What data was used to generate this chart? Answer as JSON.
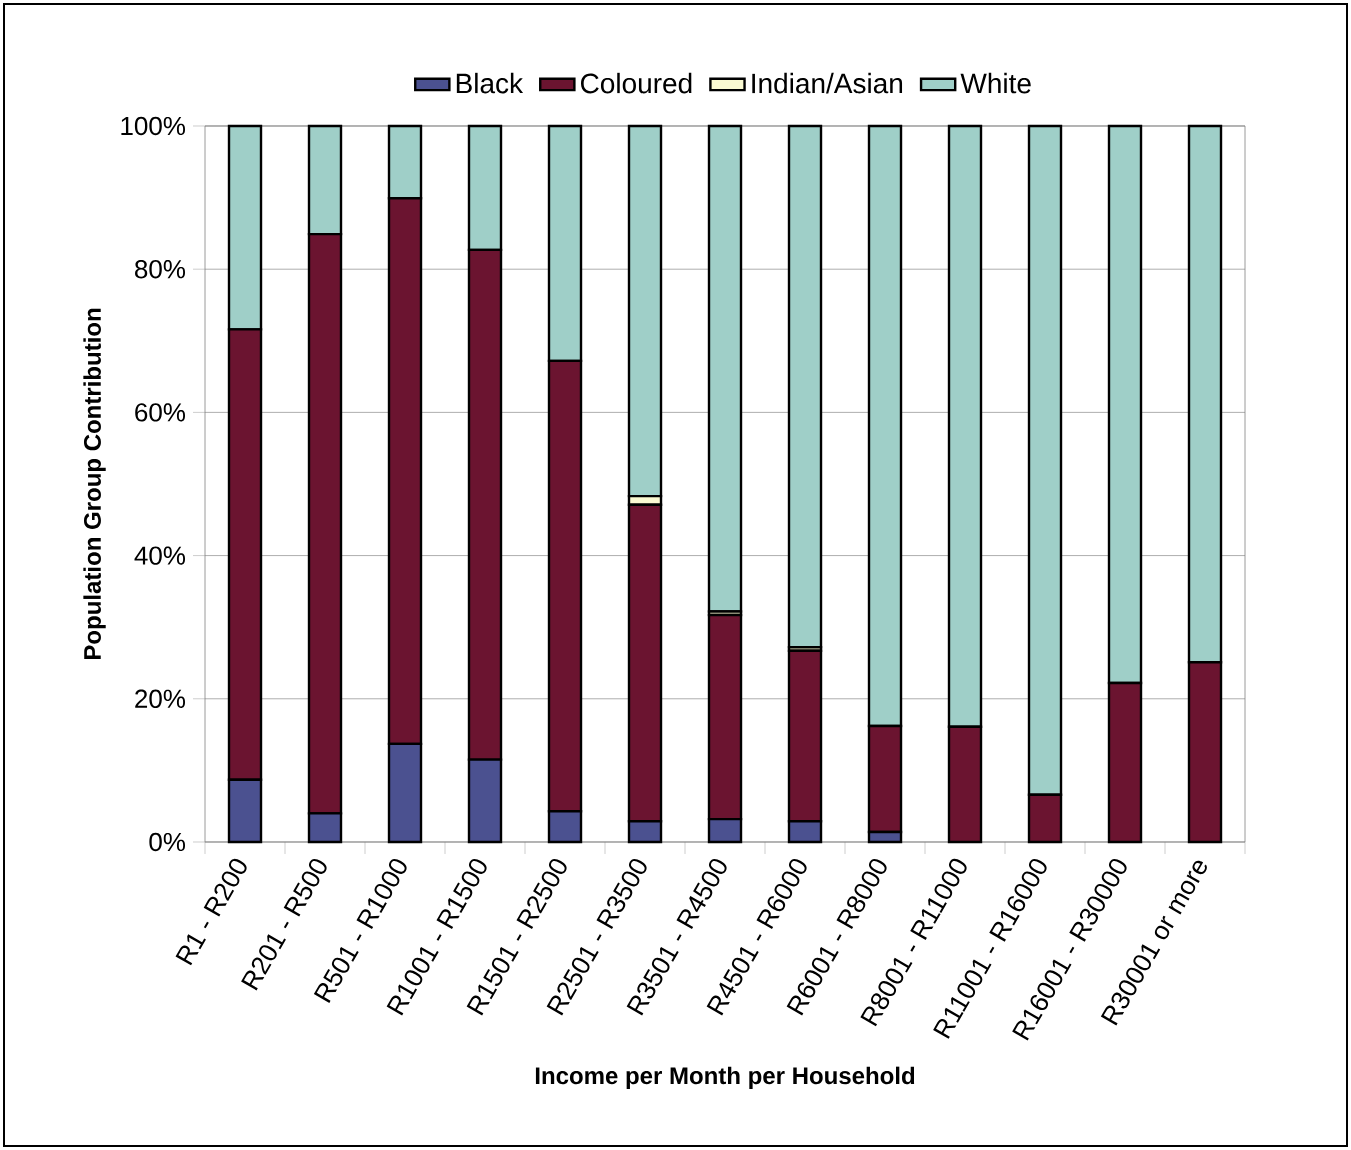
{
  "chart_data": {
    "type": "bar",
    "stacked": true,
    "xlabel": "Income per Month per Household",
    "ylabel": "Population Group Contribution",
    "categories": [
      "R1 - R200",
      "R201 - R500",
      "R501 - R1000",
      "R1001 - R1500",
      "R1501 - R2500",
      "R2501 - R3500",
      "R3501 - R4500",
      "R4501 - R6000",
      "R6001 - R8000",
      "R8001 - R11000",
      "R11001 - R16000",
      "R16001 - R30000",
      "R30001 or more"
    ],
    "series": [
      {
        "name": "Black",
        "color": "#4b5190",
        "values": [
          8.7,
          4.0,
          13.7,
          11.5,
          4.3,
          2.9,
          3.2,
          2.9,
          1.4,
          0,
          0,
          0,
          0
        ]
      },
      {
        "name": "Coloured",
        "color": "#6b1430",
        "values": [
          62.9,
          80.9,
          76.2,
          71.2,
          62.9,
          44.2,
          28.5,
          23.8,
          14.8,
          16.1,
          6.6,
          22.2,
          25.1
        ]
      },
      {
        "name": "Indian/Asian",
        "color": "#fafad2",
        "values": [
          0,
          0,
          0,
          0,
          0,
          1.2,
          0.5,
          0.5,
          0,
          0,
          0,
          0,
          0
        ]
      },
      {
        "name": "White",
        "color": "#9fcfc8",
        "values": [
          28.4,
          15.1,
          10.1,
          17.3,
          32.8,
          51.7,
          67.8,
          72.8,
          83.8,
          83.9,
          93.4,
          77.8,
          74.9
        ]
      }
    ],
    "ylim": [
      0,
      100
    ],
    "yticks": [
      {
        "value": 0,
        "label": "0%"
      },
      {
        "value": 20,
        "label": "20%"
      },
      {
        "value": 40,
        "label": "40%"
      },
      {
        "value": 60,
        "label": "60%"
      },
      {
        "value": 80,
        "label": "80%"
      },
      {
        "value": 100,
        "label": "100%"
      }
    ],
    "grid": "y",
    "legend": "top"
  }
}
